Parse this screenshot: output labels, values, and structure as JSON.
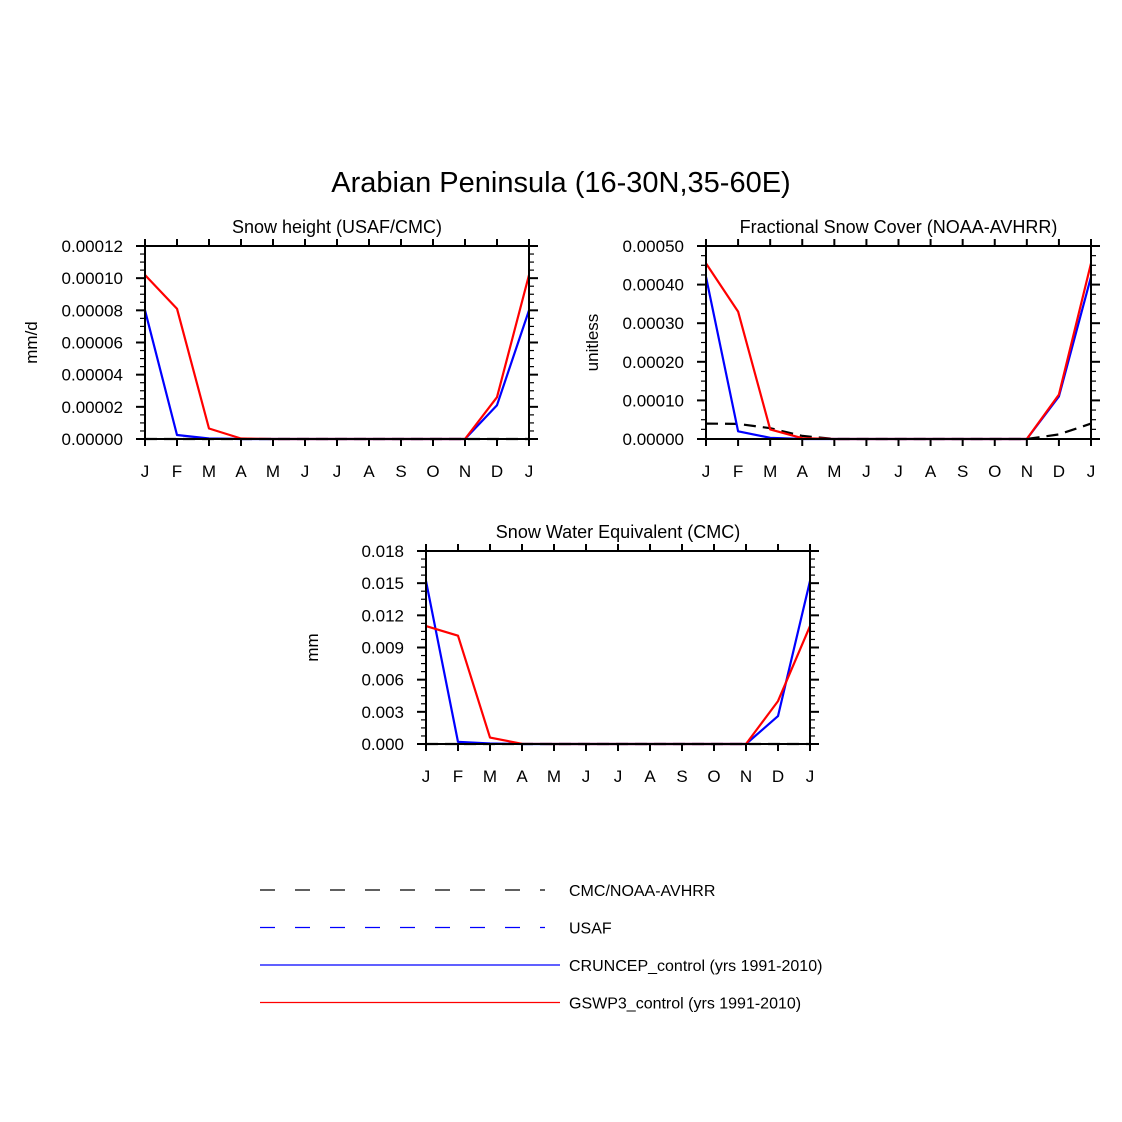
{
  "title": "Arabian Peninsula (16-30N,35-60E)",
  "colors": {
    "obs_cmc": "#000000",
    "obs_usaf": "#0000ff",
    "cruncep": "#0000ff",
    "gswp3": "#ff0000"
  },
  "legend": [
    {
      "label": "CMC/NOAA-AVHRR",
      "color": "#000000",
      "dashed": true
    },
    {
      "label": "USAF",
      "color": "#0000ff",
      "dashed": true
    },
    {
      "label": "CRUNCEP_control (yrs 1991-2010)",
      "color": "#0000ff",
      "dashed": false
    },
    {
      "label": "GSWP3_control (yrs 1991-2010)",
      "color": "#ff0000",
      "dashed": false
    }
  ],
  "chart_data": [
    {
      "type": "line",
      "title": "Snow height (USAF/CMC)",
      "ylabel": "mm/d",
      "categories": [
        "J",
        "F",
        "M",
        "A",
        "M",
        "J",
        "J",
        "A",
        "S",
        "O",
        "N",
        "D",
        "J"
      ],
      "ylim": [
        0,
        0.00012
      ],
      "yticks": [
        "0.00000",
        "0.00002",
        "0.00004",
        "0.00006",
        "0.00008",
        "0.00010",
        "0.00012"
      ],
      "series": [
        {
          "name": "CMC/NOAA-AVHRR",
          "style": "dashed",
          "color": "#000000",
          "values": [
            0,
            0,
            0,
            0,
            0,
            0,
            0,
            0,
            0,
            0,
            0,
            0,
            0
          ]
        },
        {
          "name": "CRUNCEP_control (yrs 1991-2010)",
          "style": "solid",
          "color": "#0000ff",
          "values": [
            8e-05,
            2.5e-06,
            3e-07,
            0,
            0,
            0,
            0,
            0,
            0,
            0,
            0,
            2.1e-05,
            8e-05
          ]
        },
        {
          "name": "GSWP3_control (yrs 1991-2010)",
          "style": "solid",
          "color": "#ff0000",
          "values": [
            0.000102,
            8.1e-05,
            6.5e-06,
            3e-07,
            0,
            0,
            0,
            0,
            0,
            0,
            0,
            2.6e-05,
            0.000102
          ]
        }
      ]
    },
    {
      "type": "line",
      "title": "Fractional Snow Cover (NOAA-AVHRR)",
      "ylabel": "unitless",
      "categories": [
        "J",
        "F",
        "M",
        "A",
        "M",
        "J",
        "J",
        "A",
        "S",
        "O",
        "N",
        "D",
        "J"
      ],
      "ylim": [
        0,
        0.0005
      ],
      "yticks": [
        "0.00000",
        "0.00010",
        "0.00020",
        "0.00030",
        "0.00040",
        "0.00050"
      ],
      "series": [
        {
          "name": "CMC/NOAA-AVHRR",
          "style": "dashed",
          "color": "#000000",
          "values": [
            4e-05,
            3.9e-05,
            2.8e-05,
            8e-06,
            0,
            0,
            0,
            0,
            0,
            0,
            0,
            1.2e-05,
            4e-05
          ]
        },
        {
          "name": "CRUNCEP_control (yrs 1991-2010)",
          "style": "solid",
          "color": "#0000ff",
          "values": [
            0.00042,
            2e-05,
            3e-06,
            0,
            0,
            0,
            0,
            0,
            0,
            0,
            0,
            0.00011,
            0.00042
          ]
        },
        {
          "name": "GSWP3_control (yrs 1991-2010)",
          "style": "solid",
          "color": "#ff0000",
          "values": [
            0.000455,
            0.00033,
            2.5e-05,
            2e-06,
            0,
            0,
            0,
            0,
            0,
            0,
            0,
            0.000115,
            0.000455
          ]
        }
      ]
    },
    {
      "type": "line",
      "title": "Snow Water Equivalent (CMC)",
      "ylabel": "mm",
      "categories": [
        "J",
        "F",
        "M",
        "A",
        "M",
        "J",
        "J",
        "A",
        "S",
        "O",
        "N",
        "D",
        "J"
      ],
      "ylim": [
        0,
        0.018
      ],
      "yticks": [
        "0.000",
        "0.003",
        "0.006",
        "0.009",
        "0.012",
        "0.015",
        "0.018"
      ],
      "series": [
        {
          "name": "CMC/NOAA-AVHRR",
          "style": "dashed",
          "color": "#000000",
          "values": [
            0,
            0,
            0,
            0,
            0,
            0,
            0,
            0,
            0,
            0,
            0,
            0,
            0
          ]
        },
        {
          "name": "CRUNCEP_control (yrs 1991-2010)",
          "style": "solid",
          "color": "#0000ff",
          "values": [
            0.0152,
            0.0002,
            5e-05,
            0,
            0,
            0,
            0,
            0,
            0,
            0,
            0,
            0.0026,
            0.0152
          ]
        },
        {
          "name": "GSWP3_control (yrs 1991-2010)",
          "style": "solid",
          "color": "#ff0000",
          "values": [
            0.011,
            0.0101,
            0.0006,
            2e-05,
            0,
            0,
            0,
            0,
            0,
            0,
            0,
            0.004,
            0.011
          ]
        }
      ]
    }
  ]
}
